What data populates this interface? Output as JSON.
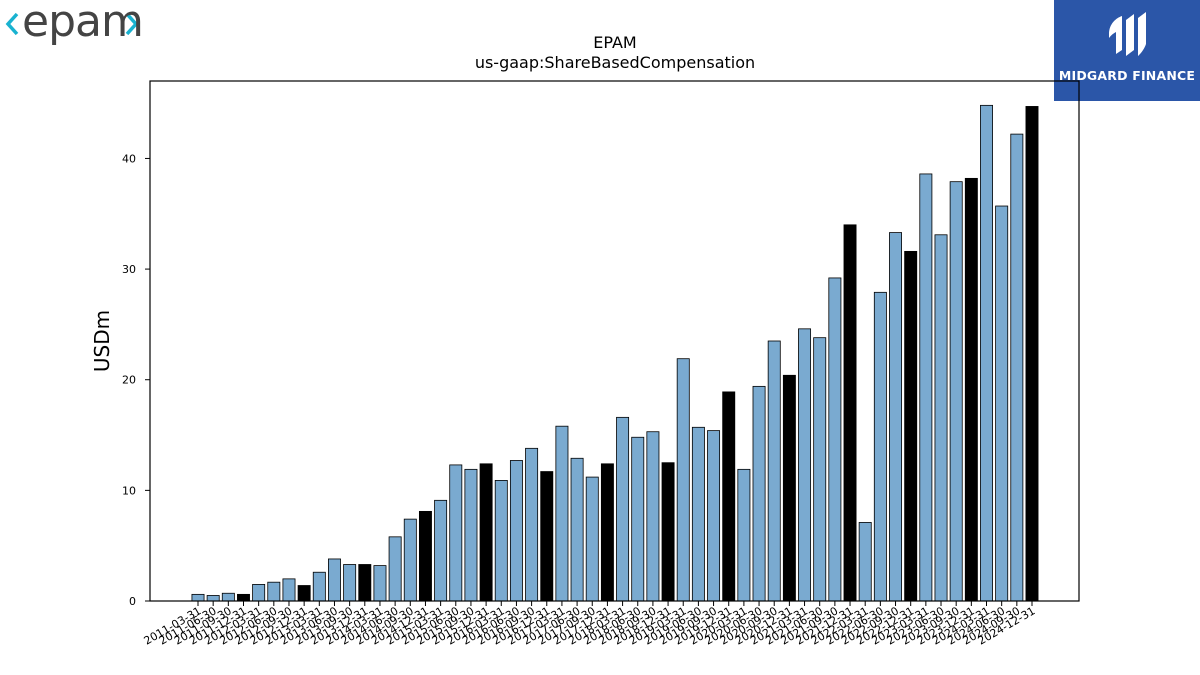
{
  "logos": {
    "left_text": "epam",
    "right_text": "MIDGARD FINANCE",
    "right_bg": "#2b56a8",
    "left_accent": "#19b2d0"
  },
  "colors": {
    "bar_default": "#7aaad0",
    "bar_highlight": "#000000",
    "bar_edge": "#000000"
  },
  "chart_data": {
    "type": "bar",
    "title": "EPAM",
    "subtitle": "us-gaap:ShareBasedCompensation",
    "xlabel": "",
    "ylabel": "USDm",
    "ylim": [
      0,
      47
    ],
    "yticks": [
      0,
      10,
      20,
      30,
      40
    ],
    "grid": false,
    "categories": [
      "2011-03-31",
      "2011-06-30",
      "2011-09-30",
      "2011-12-31",
      "2012-03-31",
      "2012-06-30",
      "2012-09-30",
      "2012-12-31",
      "2013-03-31",
      "2013-06-30",
      "2013-09-30",
      "2013-12-31",
      "2014-03-31",
      "2014-06-30",
      "2014-09-30",
      "2014-12-31",
      "2015-03-31",
      "2015-06-30",
      "2015-09-30",
      "2015-12-31",
      "2016-03-31",
      "2016-06-30",
      "2016-09-30",
      "2016-12-31",
      "2017-03-31",
      "2017-06-30",
      "2017-09-30",
      "2017-12-31",
      "2018-03-31",
      "2018-06-30",
      "2018-09-30",
      "2018-12-31",
      "2019-03-31",
      "2019-06-30",
      "2019-09-30",
      "2019-12-31",
      "2020-03-31",
      "2020-06-30",
      "2020-09-30",
      "2020-12-31",
      "2021-03-31",
      "2021-06-30",
      "2021-09-30",
      "2021-12-31",
      "2022-03-31",
      "2022-06-30",
      "2022-09-30",
      "2022-12-31",
      "2023-03-31",
      "2023-06-30",
      "2023-09-30",
      "2023-12-31",
      "2024-03-31",
      "2024-06-30",
      "2024-09-30",
      "2024-12-31"
    ],
    "values": [
      0.6,
      0.5,
      0.7,
      0.6,
      1.5,
      1.7,
      2.0,
      1.4,
      2.6,
      3.8,
      3.3,
      3.3,
      3.2,
      5.8,
      7.4,
      8.1,
      9.1,
      12.3,
      11.9,
      12.4,
      10.9,
      12.7,
      13.8,
      11.7,
      15.8,
      12.9,
      11.2,
      12.4,
      16.6,
      14.8,
      15.3,
      12.5,
      21.9,
      15.7,
      15.4,
      18.9,
      11.9,
      19.4,
      23.5,
      20.4,
      24.6,
      23.8,
      29.2,
      34.0,
      7.1,
      27.9,
      33.3,
      31.6,
      38.6,
      33.1,
      37.9,
      38.2,
      44.8,
      35.7,
      42.2,
      44.7
    ],
    "highlight_every": 4,
    "highlight_offset": 3
  }
}
